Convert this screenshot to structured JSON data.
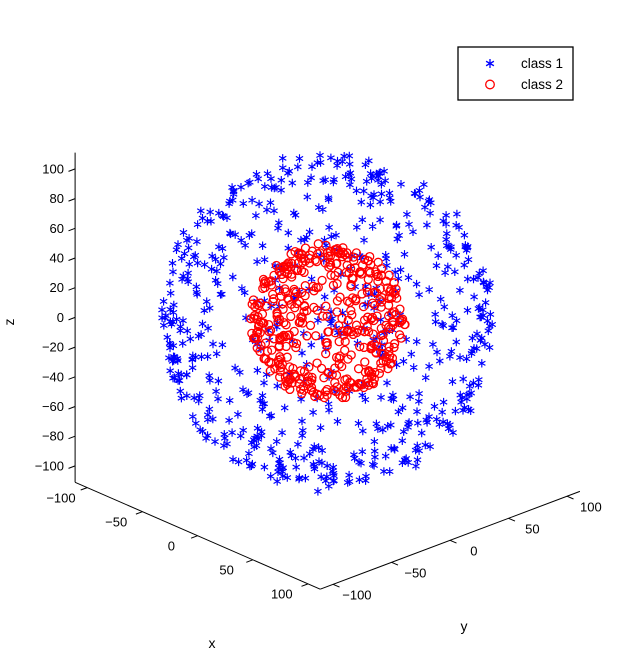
{
  "figure": {
    "background": "#ffffff",
    "axis_color": "#000000"
  },
  "legend": {
    "position": "top-right",
    "background": "#ffffff",
    "border_color": "#000000",
    "items": [
      {
        "label": "class 1",
        "marker": "asterisk",
        "color": "#0000ff"
      },
      {
        "label": "class 2",
        "marker": "open-circle",
        "color": "#ff0000"
      }
    ]
  },
  "chart_data": {
    "type": "scatter",
    "projection": "3d-orthographic",
    "view": {
      "azimuth_deg": -37.5,
      "elevation_deg": 30
    },
    "title": "",
    "xlabel": "x",
    "ylabel": "y",
    "zlabel": "z",
    "xlim": [
      -100,
      100
    ],
    "ylim": [
      -100,
      100
    ],
    "zlim": [
      -100,
      100
    ],
    "x_ticks": [
      -100,
      -50,
      0,
      50,
      100
    ],
    "y_ticks": [
      -100,
      -50,
      0,
      50,
      100
    ],
    "z_ticks": [
      -100,
      -80,
      -60,
      -40,
      -20,
      0,
      20,
      40,
      60,
      80,
      100
    ],
    "grid": false,
    "legend_position": "top-right",
    "series": [
      {
        "name": "class 1",
        "marker": "asterisk",
        "color": "#0000ff",
        "marker_size_px": 9,
        "n_points": 650,
        "distribution": "uniform-on-sphere-surface",
        "center": [
          0,
          0,
          0
        ],
        "radius": 101,
        "radius_jitter": 4,
        "seed": 1234
      },
      {
        "name": "class 2",
        "marker": "open-circle",
        "color": "#ff0000",
        "marker_size_px": 9,
        "n_points": 450,
        "distribution": "uniform-on-sphere-surface",
        "center": [
          0,
          0,
          0
        ],
        "radius": 46,
        "radius_jitter": 3,
        "seed": 99
      }
    ]
  }
}
